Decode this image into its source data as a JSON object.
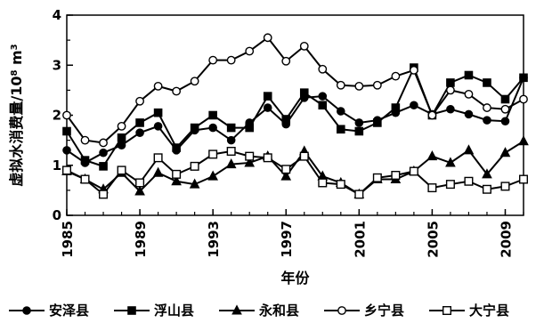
{
  "chart_data": {
    "type": "line",
    "xlabel": "年份",
    "ylabel": "虚拟水消费量/10⁸ m³",
    "ylabel_main": "虚拟水消费量/10",
    "ylabel_exp": "8",
    "ylabel_unit": " m",
    "ylabel_unit_exp": "3",
    "xlim": [
      1985,
      2010
    ],
    "ylim": [
      0,
      4
    ],
    "x_ticks": [
      1985,
      1989,
      1993,
      1997,
      2001,
      2005,
      2009
    ],
    "y_ticks": [
      0,
      1,
      2,
      3,
      4
    ],
    "x_minor_step": 1,
    "y_minor_step": 0.5,
    "grid": false,
    "legend_position": "bottom",
    "x": [
      1985,
      1986,
      1987,
      1988,
      1989,
      1990,
      1991,
      1992,
      1993,
      1994,
      1995,
      1996,
      1997,
      1998,
      1999,
      2000,
      2001,
      2002,
      2003,
      2004,
      2005,
      2006,
      2007,
      2008,
      2009,
      2010
    ],
    "series": [
      {
        "name": "安泽县",
        "marker": "circle-filled",
        "color": "#000000",
        "values": [
          1.3,
          1.05,
          1.25,
          1.4,
          1.65,
          1.78,
          1.3,
          1.7,
          1.75,
          1.5,
          1.85,
          2.15,
          1.82,
          2.35,
          2.38,
          2.08,
          1.85,
          1.9,
          2.05,
          2.2,
          2.02,
          2.12,
          2.02,
          1.9,
          1.88,
          2.75
        ]
      },
      {
        "name": "浮山县",
        "marker": "square-filled",
        "color": "#000000",
        "values": [
          1.68,
          1.1,
          0.98,
          1.55,
          1.85,
          2.05,
          1.35,
          1.75,
          2.0,
          1.75,
          1.75,
          2.38,
          1.92,
          2.45,
          2.2,
          1.72,
          1.68,
          1.85,
          2.15,
          2.95,
          2.0,
          2.65,
          2.8,
          2.65,
          2.32,
          2.75
        ]
      },
      {
        "name": "永和县",
        "marker": "triangle-filled",
        "color": "#000000",
        "values": [
          0.88,
          0.72,
          0.52,
          0.85,
          0.48,
          0.85,
          0.68,
          0.62,
          0.78,
          1.02,
          1.05,
          1.18,
          0.78,
          1.28,
          0.78,
          0.65,
          0.42,
          0.72,
          0.72,
          0.88,
          1.18,
          1.05,
          1.3,
          0.82,
          1.25,
          1.48
        ]
      },
      {
        "name": "乡宁县",
        "marker": "circle-open",
        "color": "#000000",
        "values": [
          2.0,
          1.5,
          1.45,
          1.78,
          2.28,
          2.58,
          2.48,
          2.68,
          3.1,
          3.1,
          3.28,
          3.55,
          3.08,
          3.38,
          2.92,
          2.6,
          2.58,
          2.6,
          2.78,
          2.9,
          2.0,
          2.5,
          2.42,
          2.15,
          2.12,
          2.32
        ]
      },
      {
        "name": "大宁县",
        "marker": "square-open",
        "color": "#000000",
        "values": [
          0.9,
          0.72,
          0.42,
          0.9,
          0.65,
          1.15,
          0.82,
          0.98,
          1.22,
          1.28,
          1.18,
          1.15,
          0.92,
          1.18,
          0.65,
          0.62,
          0.42,
          0.75,
          0.8,
          0.88,
          0.55,
          0.62,
          0.68,
          0.52,
          0.58,
          0.72
        ]
      }
    ]
  }
}
